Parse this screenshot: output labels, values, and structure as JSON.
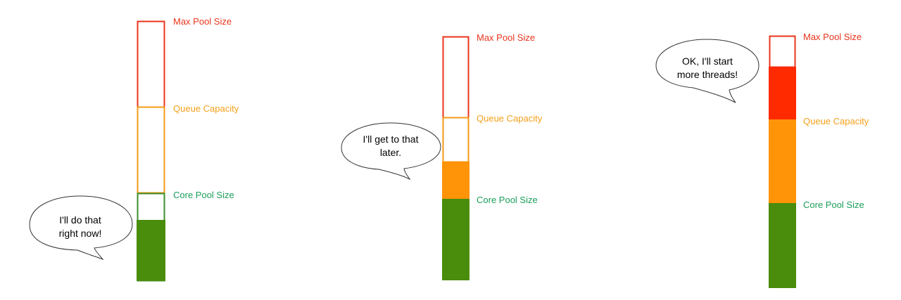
{
  "labels": {
    "max_pool_size": "Max Pool Size",
    "queue_capacity": "Queue Capacity",
    "core_pool_size": "Core Pool Size"
  },
  "colors": {
    "max_pool_outline": "#e8341c",
    "queue_outline": "#f59a16",
    "core_outline": "#3d8c2e",
    "max_label": "#e8341c",
    "queue_label": "#f5a01a",
    "core_label": "#1a9e5a",
    "max_fill": "#ff2a00",
    "queue_fill": "#ff9408",
    "core_fill": "#4a8c0c"
  },
  "bubbles": {
    "left": [
      "I'll do that",
      "right now!"
    ],
    "middle": [
      "I'll get to that",
      "later."
    ],
    "right": [
      "OK, I'll start",
      "more threads!"
    ]
  },
  "states": {
    "left": {
      "core_filled_fraction": 0.7,
      "queue_filled_fraction": 0,
      "max_filled_fraction": 0
    },
    "middle": {
      "core_filled_fraction": 1,
      "queue_filled_fraction": 0.55,
      "max_filled_fraction": 0
    },
    "right": {
      "core_filled_fraction": 1,
      "queue_filled_fraction": 1,
      "max_filled_fraction": 0.7
    }
  }
}
